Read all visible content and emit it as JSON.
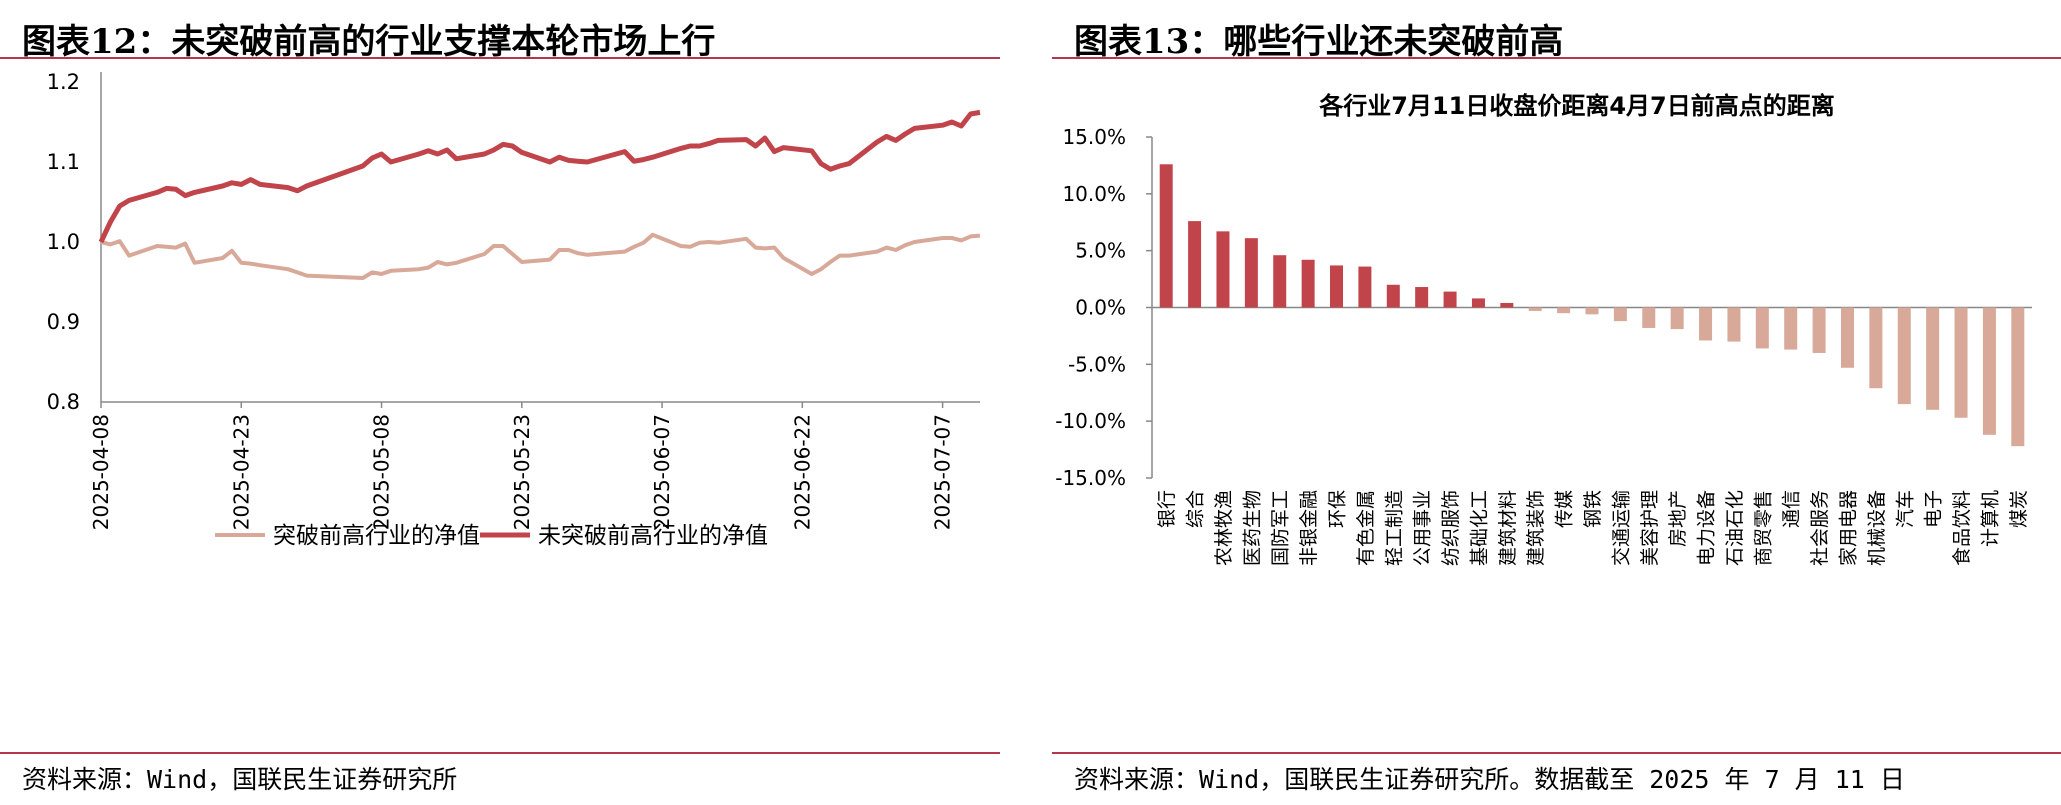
{
  "left": {
    "title": "图表12：未突破前高的行业支撑本轮市场上行",
    "source": "资料来源：Wind，国联民生证券研究所"
  },
  "right": {
    "title": "图表13：哪些行业还未突破前高",
    "source": "资料来源：Wind，国联民生证券研究所。数据截至 2025 年 7 月 11 日"
  },
  "colors": {
    "rule": "#b5364a",
    "dark_red": "#c0444a",
    "light_brown": "#d8a898"
  },
  "chart_data": [
    {
      "type": "line",
      "title": "",
      "ylim": [
        0.8,
        1.2
      ],
      "yticks": [
        "0.8",
        "0.9",
        "1.0",
        "1.1",
        "1.2"
      ],
      "xlim": [
        "2025-04-08",
        "2025-07-11"
      ],
      "xticks": [
        "2025-04-08",
        "2025-04-23",
        "2025-05-08",
        "2025-05-23",
        "2025-06-07",
        "2025-06-22",
        "2025-07-07"
      ],
      "legend_position": "bottom",
      "grid": false,
      "series": [
        {
          "name": "突破前高行业的净值",
          "color": "#d8a898",
          "points": [
            [
              "2025-04-08",
              1.0
            ],
            [
              "2025-04-09",
              0.997
            ],
            [
              "2025-04-10",
              1.001
            ],
            [
              "2025-04-11",
              0.983
            ],
            [
              "2025-04-14",
              0.995
            ],
            [
              "2025-04-15",
              0.994
            ],
            [
              "2025-04-16",
              0.993
            ],
            [
              "2025-04-17",
              0.998
            ],
            [
              "2025-04-18",
              0.974
            ],
            [
              "2025-04-21",
              0.98
            ],
            [
              "2025-04-22",
              0.989
            ],
            [
              "2025-04-23",
              0.974
            ],
            [
              "2025-04-24",
              0.973
            ],
            [
              "2025-04-25",
              0.971
            ],
            [
              "2025-04-28",
              0.966
            ],
            [
              "2025-04-29",
              0.962
            ],
            [
              "2025-04-30",
              0.958
            ],
            [
              "2025-05-06",
              0.955
            ],
            [
              "2025-05-07",
              0.962
            ],
            [
              "2025-05-08",
              0.96
            ],
            [
              "2025-05-09",
              0.964
            ],
            [
              "2025-05-12",
              0.966
            ],
            [
              "2025-05-13",
              0.968
            ],
            [
              "2025-05-14",
              0.975
            ],
            [
              "2025-05-15",
              0.972
            ],
            [
              "2025-05-16",
              0.974
            ],
            [
              "2025-05-19",
              0.985
            ],
            [
              "2025-05-20",
              0.995
            ],
            [
              "2025-05-21",
              0.995
            ],
            [
              "2025-05-22",
              0.985
            ],
            [
              "2025-05-23",
              0.975
            ],
            [
              "2025-05-26",
              0.978
            ],
            [
              "2025-05-27",
              0.99
            ],
            [
              "2025-05-28",
              0.99
            ],
            [
              "2025-05-29",
              0.986
            ],
            [
              "2025-05-30",
              0.984
            ],
            [
              "2025-06-03",
              0.988
            ],
            [
              "2025-06-04",
              0.994
            ],
            [
              "2025-06-05",
              0.999
            ],
            [
              "2025-06-06",
              1.009
            ],
            [
              "2025-06-09",
              0.995
            ],
            [
              "2025-06-10",
              0.994
            ],
            [
              "2025-06-11",
              0.999
            ],
            [
              "2025-06-12",
              1.0
            ],
            [
              "2025-06-13",
              0.999
            ],
            [
              "2025-06-16",
              1.004
            ],
            [
              "2025-06-17",
              0.993
            ],
            [
              "2025-06-18",
              0.992
            ],
            [
              "2025-06-19",
              0.993
            ],
            [
              "2025-06-20",
              0.98
            ],
            [
              "2025-06-23",
              0.96
            ],
            [
              "2025-06-24",
              0.966
            ],
            [
              "2025-06-25",
              0.975
            ],
            [
              "2025-06-26",
              0.983
            ],
            [
              "2025-06-27",
              0.983
            ],
            [
              "2025-06-30",
              0.988
            ],
            [
              "2025-07-01",
              0.993
            ],
            [
              "2025-07-02",
              0.99
            ],
            [
              "2025-07-03",
              0.996
            ],
            [
              "2025-07-04",
              1.0
            ],
            [
              "2025-07-07",
              1.005
            ],
            [
              "2025-07-08",
              1.005
            ],
            [
              "2025-07-09",
              1.002
            ],
            [
              "2025-07-10",
              1.007
            ],
            [
              "2025-07-11",
              1.008
            ]
          ]
        },
        {
          "name": "未突破前高行业的净值",
          "color": "#c0444a",
          "points": [
            [
              "2025-04-08",
              1.0
            ],
            [
              "2025-04-09",
              1.025
            ],
            [
              "2025-04-10",
              1.045
            ],
            [
              "2025-04-11",
              1.052
            ],
            [
              "2025-04-14",
              1.062
            ],
            [
              "2025-04-15",
              1.067
            ],
            [
              "2025-04-16",
              1.066
            ],
            [
              "2025-04-17",
              1.058
            ],
            [
              "2025-04-18",
              1.062
            ],
            [
              "2025-04-21",
              1.07
            ],
            [
              "2025-04-22",
              1.074
            ],
            [
              "2025-04-23",
              1.072
            ],
            [
              "2025-04-24",
              1.078
            ],
            [
              "2025-04-25",
              1.072
            ],
            [
              "2025-04-28",
              1.068
            ],
            [
              "2025-04-29",
              1.064
            ],
            [
              "2025-04-30",
              1.07
            ],
            [
              "2025-05-06",
              1.095
            ],
            [
              "2025-05-07",
              1.105
            ],
            [
              "2025-05-08",
              1.11
            ],
            [
              "2025-05-09",
              1.1
            ],
            [
              "2025-05-12",
              1.11
            ],
            [
              "2025-05-13",
              1.114
            ],
            [
              "2025-05-14",
              1.11
            ],
            [
              "2025-05-15",
              1.115
            ],
            [
              "2025-05-16",
              1.104
            ],
            [
              "2025-05-19",
              1.11
            ],
            [
              "2025-05-20",
              1.115
            ],
            [
              "2025-05-21",
              1.122
            ],
            [
              "2025-05-22",
              1.12
            ],
            [
              "2025-05-23",
              1.112
            ],
            [
              "2025-05-26",
              1.1
            ],
            [
              "2025-05-27",
              1.106
            ],
            [
              "2025-05-28",
              1.102
            ],
            [
              "2025-05-29",
              1.101
            ],
            [
              "2025-05-30",
              1.1
            ],
            [
              "2025-06-03",
              1.113
            ],
            [
              "2025-06-04",
              1.101
            ],
            [
              "2025-06-05",
              1.103
            ],
            [
              "2025-06-06",
              1.106
            ],
            [
              "2025-06-09",
              1.117
            ],
            [
              "2025-06-10",
              1.12
            ],
            [
              "2025-06-11",
              1.12
            ],
            [
              "2025-06-12",
              1.123
            ],
            [
              "2025-06-13",
              1.127
            ],
            [
              "2025-06-16",
              1.128
            ],
            [
              "2025-06-17",
              1.12
            ],
            [
              "2025-06-18",
              1.13
            ],
            [
              "2025-06-19",
              1.113
            ],
            [
              "2025-06-20",
              1.118
            ],
            [
              "2025-06-23",
              1.114
            ],
            [
              "2025-06-24",
              1.098
            ],
            [
              "2025-06-25",
              1.091
            ],
            [
              "2025-06-26",
              1.095
            ],
            [
              "2025-06-27",
              1.098
            ],
            [
              "2025-06-30",
              1.125
            ],
            [
              "2025-07-01",
              1.132
            ],
            [
              "2025-07-02",
              1.127
            ],
            [
              "2025-07-03",
              1.135
            ],
            [
              "2025-07-04",
              1.142
            ],
            [
              "2025-07-07",
              1.146
            ],
            [
              "2025-07-08",
              1.15
            ],
            [
              "2025-07-09",
              1.145
            ],
            [
              "2025-07-10",
              1.16
            ],
            [
              "2025-07-11",
              1.162
            ]
          ]
        }
      ]
    },
    {
      "type": "bar",
      "title": "各行业7月11日收盘价距离4月7日前高点的距离",
      "ylim": [
        -15,
        15
      ],
      "yticks": [
        "15.0%",
        "10.0%",
        "5.0%",
        "0.0%",
        "-5.0%",
        "-10.0%",
        "-15.0%"
      ],
      "unit": "%",
      "grid": false,
      "categories": [
        "银行",
        "综合",
        "农林牧渔",
        "医药生物",
        "国防军工",
        "非银金融",
        "环保",
        "有色金属",
        "轻工制造",
        "公用事业",
        "纺织服饰",
        "基础化工",
        "建筑材料",
        "建筑装饰",
        "传媒",
        "钢铁",
        "交通运输",
        "美容护理",
        "房地产",
        "电力设备",
        "石油石化",
        "商贸零售",
        "通信",
        "社会服务",
        "家用电器",
        "机械设备",
        "汽车",
        "电子",
        "食品饮料",
        "计算机",
        "煤炭"
      ],
      "values": [
        12.6,
        7.6,
        6.7,
        6.1,
        4.6,
        4.2,
        3.7,
        3.6,
        2.0,
        1.8,
        1.4,
        0.8,
        0.4,
        -0.3,
        -0.5,
        -0.6,
        -1.2,
        -1.8,
        -1.9,
        -2.9,
        -3.0,
        -3.6,
        -3.7,
        -4.0,
        -5.3,
        -7.1,
        -8.5,
        -9.0,
        -9.7,
        -11.2,
        -12.2
      ]
    }
  ]
}
